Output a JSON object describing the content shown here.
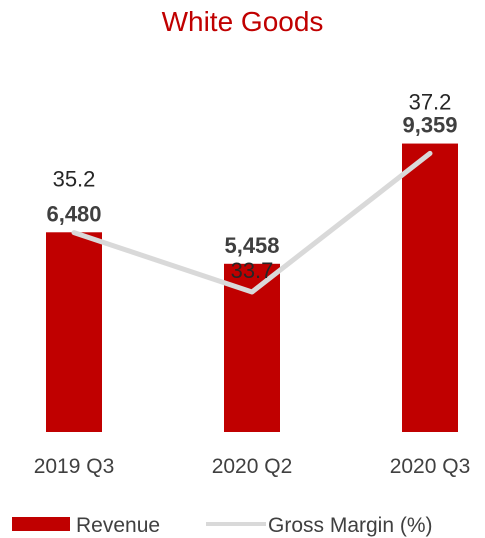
{
  "chart_data": {
    "type": "bar",
    "title": "White Goods",
    "categories": [
      "2019 Q3",
      "2020 Q2",
      "2020 Q3"
    ],
    "series": [
      {
        "name": "Revenue",
        "type": "bar",
        "values": [
          6480,
          5458,
          9359
        ],
        "labels": [
          "6,480",
          "5,458",
          "9,359"
        ]
      },
      {
        "name": "Gross Margin (%)",
        "type": "line",
        "values": [
          35.2,
          33.7,
          37.2
        ],
        "labels": [
          "35.2",
          "33.7",
          "37.2"
        ]
      }
    ],
    "xlabel": "",
    "ylabel": "",
    "grid": false,
    "legend_position": "bottom",
    "colors": {
      "title": "#c00000",
      "bar": "#c00000",
      "line": "#d9d9d9"
    }
  }
}
